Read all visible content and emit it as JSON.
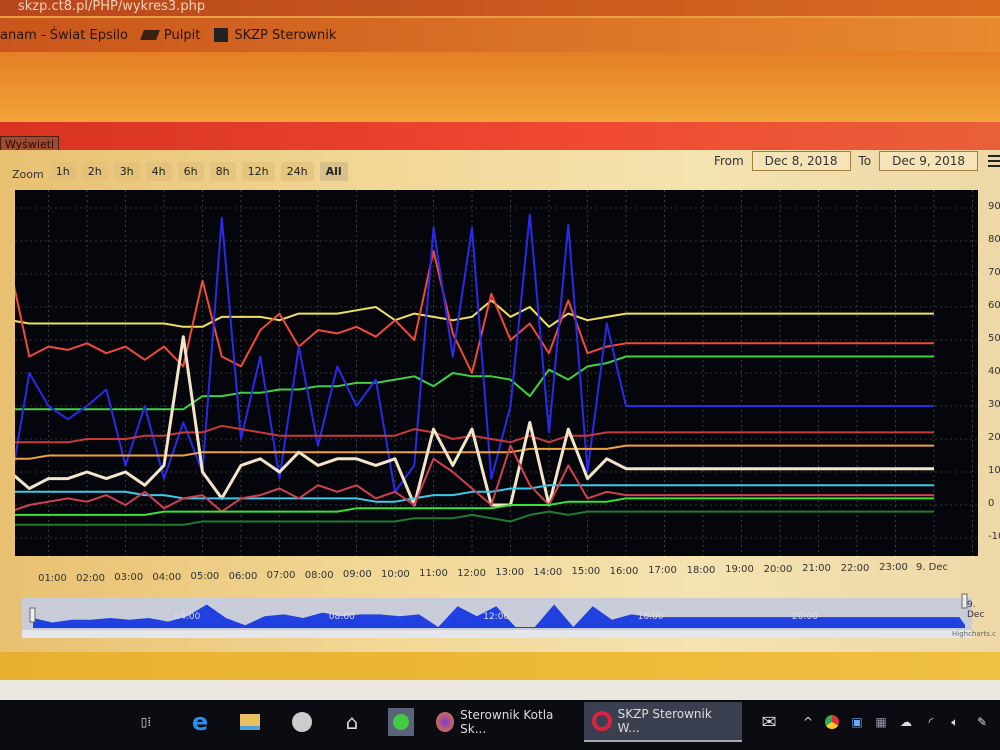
{
  "browser": {
    "url": "skzp.ct8.pl/PHP/wykres3.php",
    "bookmarks": [
      {
        "label": "anam - Świat Epsilo",
        "icon": "bookmark-icon"
      },
      {
        "label": "Pulpit",
        "icon": "folder-icon"
      },
      {
        "label": "SKZP Sterownik",
        "icon": "page-icon"
      }
    ]
  },
  "page": {
    "show_button": "Wyświetl"
  },
  "toolbar": {
    "zoom_label": "Zoom",
    "zoom_buttons": [
      "1h",
      "2h",
      "3h",
      "4h",
      "6h",
      "8h",
      "12h",
      "24h",
      "All"
    ],
    "active_zoom": "All",
    "from_label": "From",
    "from_value": "Dec 8, 2018",
    "to_label": "To",
    "to_value": "Dec 9, 2018",
    "menu_icon": "hamburger-icon"
  },
  "chart_data": {
    "type": "line",
    "background": "#05060c",
    "xlim": [
      -0.13,
      24.9
    ],
    "ylim": [
      -15,
      96
    ],
    "grid": true,
    "x": [
      0,
      0.5,
      1,
      1.5,
      2,
      2.5,
      3,
      3.5,
      4,
      4.5,
      5,
      5.5,
      6,
      6.5,
      7,
      7.5,
      8,
      8.5,
      9,
      9.5,
      10,
      10.5,
      11,
      11.5,
      12,
      12.5,
      13,
      13.5,
      14,
      14.5,
      15,
      15.5,
      16,
      24
    ],
    "x_tick_labels": [
      "01:00",
      "02:00",
      "03:00",
      "04:00",
      "05:00",
      "06:00",
      "07:00",
      "08:00",
      "09:00",
      "10:00",
      "11:00",
      "12:00",
      "13:00",
      "14:00",
      "15:00",
      "16:00",
      "17:00",
      "18:00",
      "19:00",
      "20:00",
      "21:00",
      "22:00",
      "23:00",
      "9. Dec"
    ],
    "y_tick_labels": [
      "90",
      "80",
      "70",
      "60",
      "50",
      "40",
      "30",
      "20",
      "10",
      "0",
      "-10"
    ],
    "series": [
      {
        "color": "#f0e060",
        "values": [
          56,
          55,
          55,
          55,
          55,
          55,
          55,
          55,
          55,
          54,
          54,
          57,
          57,
          57,
          56,
          58,
          58,
          58,
          59,
          60,
          56,
          58,
          57,
          56,
          57,
          62,
          57,
          60,
          54,
          58,
          56,
          57,
          58,
          58
        ]
      },
      {
        "color": "#f04a3a",
        "values": [
          72,
          45,
          48,
          47,
          49,
          46,
          48,
          44,
          48,
          42,
          68,
          45,
          42,
          53,
          58,
          48,
          53,
          52,
          54,
          51,
          56,
          50,
          77,
          52,
          40,
          64,
          50,
          55,
          46,
          62,
          46,
          48,
          49,
          49
        ]
      },
      {
        "color": "#40d040",
        "values": [
          29,
          29,
          29,
          29,
          29,
          29,
          29,
          29,
          29,
          29,
          33,
          33,
          34,
          34,
          35,
          35,
          36,
          36,
          37,
          37,
          38,
          39,
          36,
          40,
          39,
          39,
          38,
          33,
          41,
          38,
          42,
          43,
          45,
          45
        ]
      },
      {
        "color": "#2a2ae8",
        "values": [
          5,
          40,
          30,
          26,
          30,
          35,
          12,
          30,
          8,
          25,
          10,
          87,
          20,
          45,
          8,
          48,
          18,
          42,
          30,
          38,
          4,
          12,
          84,
          45,
          84,
          8,
          30,
          88,
          22,
          85,
          10,
          55,
          30,
          30
        ]
      },
      {
        "color": "#c83a3a",
        "values": [
          19,
          19,
          19,
          19,
          20,
          20,
          20,
          21,
          21,
          22,
          22,
          24,
          23,
          22,
          21,
          21,
          21,
          21,
          21,
          21,
          21,
          23,
          22,
          20,
          21,
          20,
          19,
          21,
          19,
          21,
          21,
          22,
          22,
          22
        ]
      },
      {
        "color": "#f0a040",
        "values": [
          14,
          14,
          15,
          15,
          15,
          15,
          15,
          15,
          15,
          15,
          16,
          16,
          16,
          16,
          16,
          16,
          16,
          16,
          16,
          16,
          16,
          16,
          16,
          16,
          16,
          16,
          16,
          17,
          17,
          17,
          17,
          17,
          18,
          18
        ]
      },
      {
        "color": "#f4e4c8",
        "values": [
          10,
          5,
          8,
          8,
          10,
          8,
          10,
          6,
          12,
          51,
          10,
          2,
          12,
          14,
          10,
          16,
          12,
          14,
          14,
          12,
          14,
          0,
          23,
          12,
          23,
          0,
          0,
          25,
          0,
          23,
          8,
          14,
          11,
          11
        ]
      },
      {
        "color": "#40c8e8",
        "values": [
          4,
          4,
          4,
          4,
          4,
          4,
          4,
          3,
          3,
          2,
          2,
          2,
          2,
          2,
          2,
          2,
          2,
          2,
          2,
          1,
          1,
          2,
          3,
          3,
          4,
          4,
          5,
          5,
          6,
          6,
          6,
          6,
          6,
          6
        ]
      },
      {
        "color": "#d04050",
        "values": [
          -2,
          0,
          1,
          2,
          1,
          3,
          0,
          4,
          -1,
          2,
          3,
          -2,
          2,
          3,
          5,
          2,
          6,
          4,
          6,
          2,
          4,
          0,
          14,
          10,
          5,
          0,
          18,
          6,
          0,
          12,
          2,
          4,
          3,
          3
        ]
      },
      {
        "color": "#38e038",
        "values": [
          -3,
          -3,
          -3,
          -3,
          -3,
          -3,
          -3,
          -3,
          -2,
          -2,
          -2,
          -2,
          -2,
          -2,
          -2,
          -2,
          -2,
          -2,
          -1,
          -1,
          -1,
          -1,
          -1,
          -1,
          -1,
          -1,
          0,
          0,
          0,
          1,
          1,
          1,
          2,
          2
        ]
      },
      {
        "color": "#207a30",
        "values": [
          -6,
          -6,
          -6,
          -6,
          -6,
          -6,
          -6,
          -6,
          -6,
          -6,
          -5,
          -5,
          -5,
          -5,
          -5,
          -5,
          -5,
          -5,
          -5,
          -5,
          -5,
          -4,
          -4,
          -4,
          -3,
          -4,
          -5,
          -3,
          -2,
          -3,
          -2,
          -2,
          -2,
          -2
        ]
      }
    ],
    "navigator": {
      "color": "#2040e0",
      "labels": [
        "04:00",
        "08:00",
        "12:00",
        "16:00",
        "20:00",
        "9. Dec"
      ]
    },
    "credit": "Highcharts.c"
  },
  "taskbar": {
    "icons": [
      "task-view-icon",
      "edge-icon",
      "file-explorer-icon",
      "webcam-icon",
      "home-icon",
      "whatsapp-icon"
    ],
    "apps": [
      {
        "label": "Sterownik Kotla Sk...",
        "icon": "firefox-icon"
      },
      {
        "label": "SKZP Sterownik W...",
        "icon": "opera-icon"
      }
    ],
    "tray": [
      "mail-icon",
      "chevron-up-icon",
      "chrome-icon",
      "network-app-icon",
      "display-icon",
      "cloud-icon",
      "wifi-icon",
      "volume-icon",
      "pen-icon"
    ]
  }
}
